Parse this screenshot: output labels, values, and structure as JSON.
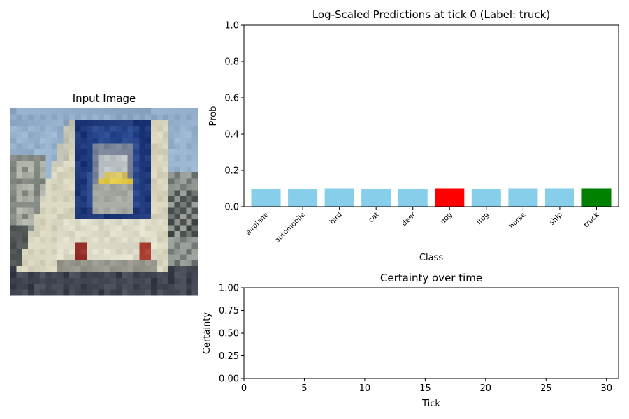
{
  "image_panel": {
    "title": "Input Image",
    "image_subject": "pixelated-white-truck-front"
  },
  "chart_data": [
    {
      "type": "bar",
      "title": "Log-Scaled Predictions at tick 0 (Label: truck)",
      "xlabel": "Class",
      "ylabel": "Prob",
      "ylim": [
        0,
        1
      ],
      "yticks": [
        0.0,
        0.2,
        0.4,
        0.6,
        0.8,
        1.0
      ],
      "ytick_labels": [
        "0.0",
        "0.2",
        "0.4",
        "0.6",
        "0.8",
        "1.0"
      ],
      "categories": [
        "airplane",
        "automobile",
        "bird",
        "cat",
        "deer",
        "dog",
        "frog",
        "horse",
        "ship",
        "truck"
      ],
      "values": [
        0.099,
        0.099,
        0.102,
        0.099,
        0.099,
        0.102,
        0.099,
        0.102,
        0.102,
        0.102
      ],
      "colors": [
        "#87ceeb",
        "#87ceeb",
        "#87ceeb",
        "#87ceeb",
        "#87ceeb",
        "#ff0000",
        "#87ceeb",
        "#87ceeb",
        "#87ceeb",
        "#008000"
      ],
      "grid": false,
      "legend": "none"
    },
    {
      "type": "line",
      "title": "Certainty over time",
      "xlabel": "Tick",
      "ylabel": "Certainty",
      "xlim": [
        0,
        31
      ],
      "ylim": [
        0,
        1
      ],
      "xticks": [
        0,
        5,
        10,
        15,
        20,
        25,
        30
      ],
      "xtick_labels": [
        "0",
        "5",
        "10",
        "15",
        "20",
        "25",
        "30"
      ],
      "yticks": [
        0.0,
        0.25,
        0.5,
        0.75,
        1.0
      ],
      "ytick_labels": [
        "0.00",
        "0.25",
        "0.50",
        "0.75",
        "1.00"
      ],
      "series": [
        {
          "x": [],
          "y": []
        }
      ],
      "grid": false,
      "legend": "none"
    }
  ]
}
